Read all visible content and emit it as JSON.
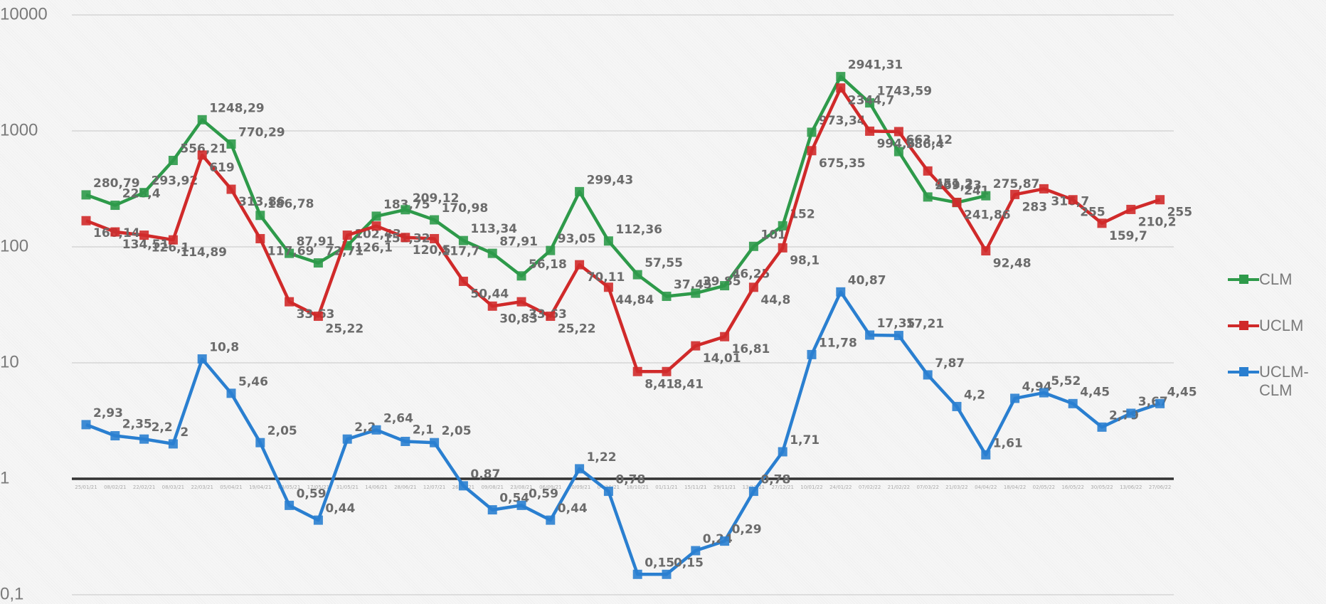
{
  "chart_data": {
    "type": "line",
    "log_scale": true,
    "grid": true,
    "legend": "right",
    "ylim": [
      0.1,
      10000
    ],
    "yticks": [
      {
        "value": 0.1,
        "label": "0,1"
      },
      1,
      10,
      100,
      1000,
      10000
    ],
    "categories": [
      "25/01/21",
      "08/02/21",
      "22/02/21",
      "08/03/21",
      "22/03/21",
      "05/04/21",
      "19/04/21",
      "03/05/21",
      "17/05/21",
      "31/05/21",
      "14/06/21",
      "28/06/21",
      "12/07/21",
      "26/07/21",
      "09/08/21",
      "23/08/21",
      "06/09/21",
      "20/09/21",
      "04/10/21",
      "18/10/21",
      "01/11/21",
      "15/11/21",
      "29/11/21",
      "13/12/21",
      "27/12/21",
      "10/01/22",
      "24/01/22",
      "07/02/22",
      "21/02/22",
      "07/03/22",
      "21/03/22",
      "04/04/22",
      "18/04/22",
      "02/05/22",
      "16/05/22",
      "30/05/22",
      "13/06/22",
      "27/06/22"
    ],
    "series": [
      {
        "name": "CLM",
        "color": "#2e9a4a",
        "values": [
          280.79,
          228.4,
          293.92,
          556.21,
          1248.29,
          770.29,
          186.78,
          87.91,
          72.71,
          102.43,
          183.75,
          209.12,
          170.98,
          113.34,
          87.91,
          56.18,
          93.05,
          299.43,
          112.36,
          57.55,
          37.45,
          39.85,
          46.25,
          101,
          152,
          973.34,
          2941.31,
          1743.59,
          663.12,
          269.23,
          241,
          275.87,
          null,
          null,
          null,
          null,
          null,
          null
        ],
        "value_labels": [
          "280,79",
          "228,4",
          "293,92",
          "556,21",
          "1248,29",
          "770,29",
          "186,78",
          "87,91",
          "72,71",
          "102,43",
          "183,75",
          "209,12",
          "170,98",
          "113,34",
          "87,91",
          "56,18",
          "93,05",
          "299,43",
          "112,36",
          "57,55",
          "37,45",
          "39,85",
          "46,25",
          "101",
          "152",
          "973,34",
          "2941,31",
          "1743,59",
          "663,12",
          "269,23",
          "241",
          "275,87",
          null,
          null,
          null,
          null,
          null,
          null
        ]
      },
      {
        "name": "UCLM",
        "color": "#d02a2a",
        "values": [
          168.14,
          134.51,
          126.1,
          114.89,
          619,
          313.86,
          117.69,
          33.63,
          25.22,
          126.1,
          151.32,
          120.5,
          117.7,
          50.44,
          30.83,
          33.63,
          25.22,
          70.11,
          44.84,
          8.41,
          8.41,
          14.01,
          16.81,
          44.8,
          98.1,
          675.35,
          2344.7,
          994.6,
          986.4,
          451.2,
          241.86,
          92.48,
          283,
          316.7,
          255,
          159.7,
          210.2,
          255
        ],
        "value_labels": [
          "168,14",
          "134,51",
          "126,1",
          "114,89",
          "619",
          "313,86",
          "117,69",
          "33,63",
          "25,22",
          "126,1",
          "151,32",
          "120,5",
          "117,7",
          "50,44",
          "30,83",
          "33,63",
          "25,22",
          "70,11",
          "44,84",
          "8,41",
          "8,41",
          "14,01",
          "16,81",
          "44,8",
          "98,1",
          "675,35",
          "2344,7",
          "994,6",
          "986,4",
          "451,2",
          "241,86",
          "92,48",
          "283",
          "316,7",
          "255",
          "159,7",
          "210,2",
          "255"
        ]
      },
      {
        "name": "UCLM-CLM",
        "color": "#2a7fd0",
        "values": [
          2.93,
          2.35,
          2.2,
          2,
          10.8,
          5.46,
          2.05,
          0.59,
          0.44,
          2.2,
          2.64,
          2.1,
          2.05,
          0.87,
          0.54,
          0.59,
          0.44,
          1.22,
          0.78,
          0.15,
          0.15,
          0.24,
          0.29,
          0.78,
          1.71,
          11.78,
          40.87,
          17.35,
          17.21,
          7.87,
          4.2,
          1.61,
          4.94,
          5.52,
          4.45,
          2.79,
          3.67,
          4.45
        ],
        "value_labels": [
          "2,93",
          "2,35",
          "2,2",
          "2",
          "10,8",
          "5,46",
          "2,05",
          "0,59",
          "0,44",
          "2,2",
          "2,64",
          "2,1",
          "2,05",
          "0,87",
          "0,54",
          "0,59",
          "0,44",
          "1,22",
          "0,78",
          "0,15",
          "0,15",
          "0,24",
          "0,29",
          "0,78",
          "1,71",
          "11,78",
          "40,87",
          "17,35",
          "17,21",
          "7,87",
          "4,2",
          "1,61",
          "4,94",
          "5,52",
          "4,45",
          "2,79",
          "3,67",
          "4,45"
        ]
      }
    ]
  }
}
